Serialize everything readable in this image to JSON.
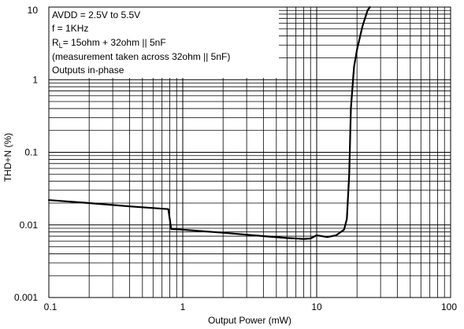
{
  "chart_data": {
    "type": "line",
    "xlabel": "Output Power (mW)",
    "ylabel": "THD+N (%)",
    "x_scale": "log",
    "y_scale": "log",
    "xlim": [
      0.1,
      100
    ],
    "ylim": [
      0.001,
      10
    ],
    "x_tick_labels": [
      "0.1",
      "1",
      "10",
      "100"
    ],
    "y_tick_labels": [
      "0.001",
      "0.01",
      "0.1",
      "1",
      "10"
    ],
    "grid": true,
    "annotations": {
      "line1": "AVDD = 2.5V to 5.5V",
      "line2": "f = 1KHz",
      "line3_prefix": "R",
      "line3_sub": "L",
      "line3_rest": "= 15ohm + 32ohm || 5nF",
      "line4": "(measurement taken across 32ohm || 5nF)",
      "line5": "Outputs in-phase"
    },
    "series": [
      {
        "color": "#000000",
        "x": [
          0.1,
          0.2,
          0.4,
          0.78,
          0.8,
          0.82,
          1.0,
          2.0,
          4.0,
          6.0,
          8.0,
          9.0,
          10.0,
          12.0,
          14.0,
          16.0,
          16.8,
          17.5,
          18.0,
          19.0,
          20.0,
          22.0,
          24.0,
          25.0
        ],
        "y": [
          0.022,
          0.02,
          0.018,
          0.0165,
          0.012,
          0.0088,
          0.0086,
          0.0078,
          0.007,
          0.0066,
          0.0064,
          0.0065,
          0.0072,
          0.0068,
          0.0072,
          0.0086,
          0.012,
          0.05,
          0.4,
          1.5,
          2.6,
          5.5,
          9.0,
          10.0
        ]
      }
    ]
  }
}
